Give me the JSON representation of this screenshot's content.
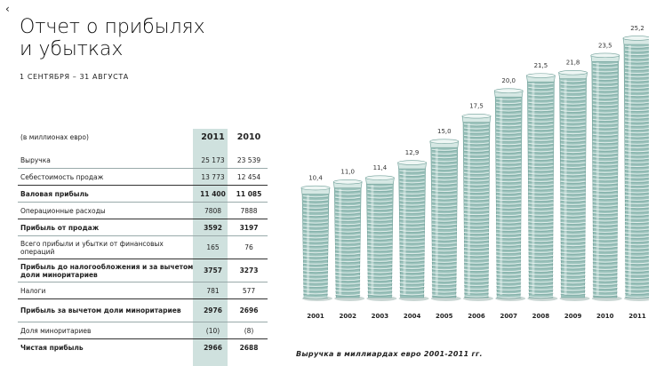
{
  "nav": {
    "back_icon": "chevron-left-icon",
    "back_glyph": "‹"
  },
  "title_line1": "Отчет о прибылях",
  "title_line2": "и убытках",
  "period": "1 СЕНТЯБРЯ – 31 АВГУСТА",
  "table": {
    "unit": "(в миллионах евро)",
    "columns": [
      "2011",
      "2010"
    ],
    "rows": [
      {
        "label": "Выручка",
        "v2011": "25 173",
        "v2010": "23 539",
        "bold": false
      },
      {
        "label": "Себестоимость продаж",
        "v2011": "13 773",
        "v2010": "12 454",
        "bold": false
      },
      {
        "label": "Валовая прибыль",
        "v2011": "11 400",
        "v2010": "11 085",
        "bold": true
      },
      {
        "label": "Операционные расходы",
        "v2011": "7808",
        "v2010": "7888",
        "bold": false
      },
      {
        "label": "Прибыль от продаж",
        "v2011": "3592",
        "v2010": "3197",
        "bold": true
      },
      {
        "label": "Всего прибыли и убытки от финансовых операций",
        "v2011": "165",
        "v2010": "76",
        "bold": false
      },
      {
        "label": "Прибыль до налогообложения и за вычетом доли миноритариев",
        "v2011": "3757",
        "v2010": "3273",
        "bold": true
      },
      {
        "label": "Налоги",
        "v2011": "781",
        "v2010": "577",
        "bold": false
      },
      {
        "label": "Прибыль за вычетом доли миноритариев",
        "v2011": "2976",
        "v2010": "2696",
        "bold": true
      },
      {
        "label": "Доля миноритариев",
        "v2011": "(10)",
        "v2010": "(8)",
        "bold": false
      },
      {
        "label": "Чистая прибыль",
        "v2011": "2966",
        "v2010": "2688",
        "bold": true
      }
    ]
  },
  "colors": {
    "glass_light": "#d6e8e4",
    "glass_mid": "#9cc3bc",
    "glass_dark": "#6f9f98",
    "highlight_col": "#cfe1de"
  },
  "chart_data": {
    "type": "bar",
    "categories": [
      "2001",
      "2002",
      "2003",
      "2004",
      "2005",
      "2006",
      "2007",
      "2008",
      "2009",
      "2010",
      "2011"
    ],
    "values": [
      10.4,
      11.0,
      11.4,
      12.9,
      15.0,
      17.5,
      20.0,
      21.5,
      21.8,
      23.5,
      25.2
    ],
    "value_labels": [
      "10,4",
      "11,0",
      "11,4",
      "12,9",
      "15,0",
      "17,5",
      "20,0",
      "21,5",
      "21,8",
      "23,5",
      "25,2"
    ],
    "caption": "Выручка в миллиардах евро 2001-2011 гг.",
    "grid": false,
    "legend": "none"
  }
}
